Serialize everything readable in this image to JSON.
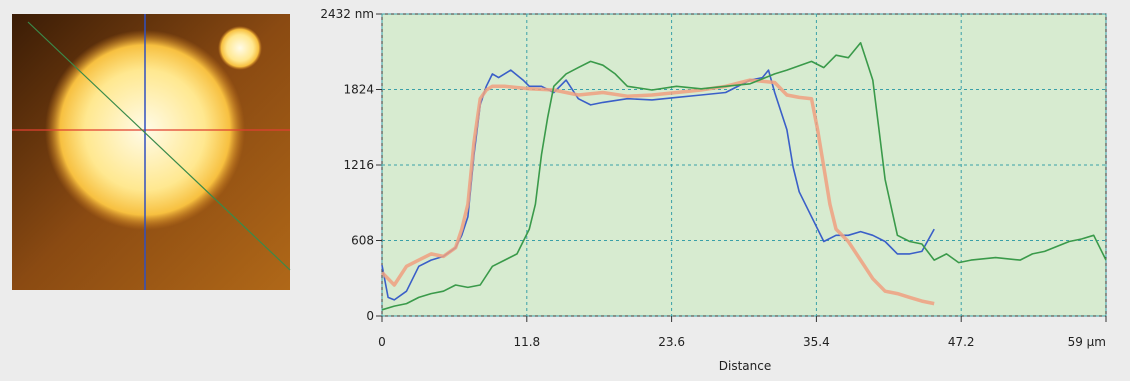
{
  "chart_data": {
    "type": "line",
    "x_label": "Distance",
    "xlim": [
      0,
      59
    ],
    "ylim": [
      0,
      2432
    ],
    "xticks": [
      0,
      11.8,
      23.6,
      35.4,
      47.2,
      {
        "value": 59,
        "label": "59 µm"
      }
    ],
    "yticks": [
      0,
      608,
      1216,
      1824,
      {
        "value": 2432,
        "label": "2432 nm"
      }
    ],
    "grid": true,
    "series": [
      {
        "color": "#3a5fc8",
        "x": [
          0,
          0.5,
          1,
          2,
          3,
          4,
          5,
          6,
          6.5,
          7,
          7.5,
          8,
          8.5,
          9,
          9.5,
          10.5,
          11.5,
          12,
          13,
          14,
          15,
          16,
          17,
          18,
          20,
          22,
          24,
          26,
          28,
          30,
          31,
          31.5,
          32,
          33,
          33.5,
          34,
          35,
          36,
          37,
          38,
          39,
          40,
          41,
          42,
          43,
          44,
          45
        ],
        "values": [
          410,
          150,
          130,
          200,
          400,
          450,
          480,
          550,
          650,
          800,
          1300,
          1700,
          1850,
          1950,
          1920,
          1980,
          1900,
          1850,
          1850,
          1800,
          1900,
          1750,
          1700,
          1720,
          1750,
          1740,
          1760,
          1780,
          1800,
          1900,
          1920,
          1980,
          1800,
          1500,
          1200,
          1000,
          800,
          600,
          650,
          650,
          680,
          650,
          600,
          500,
          500,
          520,
          700
        ]
      },
      {
        "color": "#f0a080",
        "x": [
          0,
          0.5,
          1,
          2,
          3,
          4,
          5,
          6,
          6.5,
          7,
          7.5,
          8,
          8.5,
          9,
          10,
          12,
          14,
          16,
          18,
          20,
          22,
          24,
          26,
          28,
          30,
          32,
          33,
          34,
          35,
          35.5,
          36,
          36.5,
          37,
          38,
          39,
          40,
          41,
          42,
          43,
          44,
          45
        ],
        "values": [
          350,
          300,
          250,
          400,
          450,
          500,
          480,
          550,
          700,
          900,
          1400,
          1750,
          1820,
          1850,
          1850,
          1830,
          1820,
          1780,
          1800,
          1770,
          1780,
          1800,
          1820,
          1850,
          1900,
          1880,
          1780,
          1760,
          1750,
          1500,
          1200,
          900,
          700,
          600,
          450,
          300,
          200,
          180,
          150,
          120,
          100
        ]
      },
      {
        "color": "#3a9a4a",
        "x": [
          0,
          1,
          2,
          3,
          4,
          5,
          6,
          7,
          8,
          9,
          10,
          11,
          12,
          12.5,
          13,
          13.5,
          14,
          15,
          16,
          17,
          18,
          19,
          20,
          22,
          24,
          26,
          28,
          30,
          32,
          33,
          35,
          36,
          37,
          38,
          39,
          39.5,
          40,
          40.5,
          41,
          42,
          43,
          44,
          45,
          46,
          47,
          48,
          50,
          52,
          53,
          54,
          56,
          57,
          58,
          59
        ],
        "values": [
          50,
          80,
          100,
          150,
          180,
          200,
          250,
          230,
          250,
          400,
          450,
          500,
          700,
          900,
          1300,
          1600,
          1850,
          1950,
          2000,
          2050,
          2020,
          1950,
          1850,
          1820,
          1850,
          1830,
          1850,
          1870,
          1950,
          1980,
          2050,
          2000,
          2100,
          2080,
          2200,
          2050,
          1900,
          1500,
          1100,
          650,
          600,
          580,
          450,
          500,
          430,
          450,
          470,
          450,
          500,
          520,
          600,
          620,
          650,
          450
        ]
      }
    ]
  }
}
